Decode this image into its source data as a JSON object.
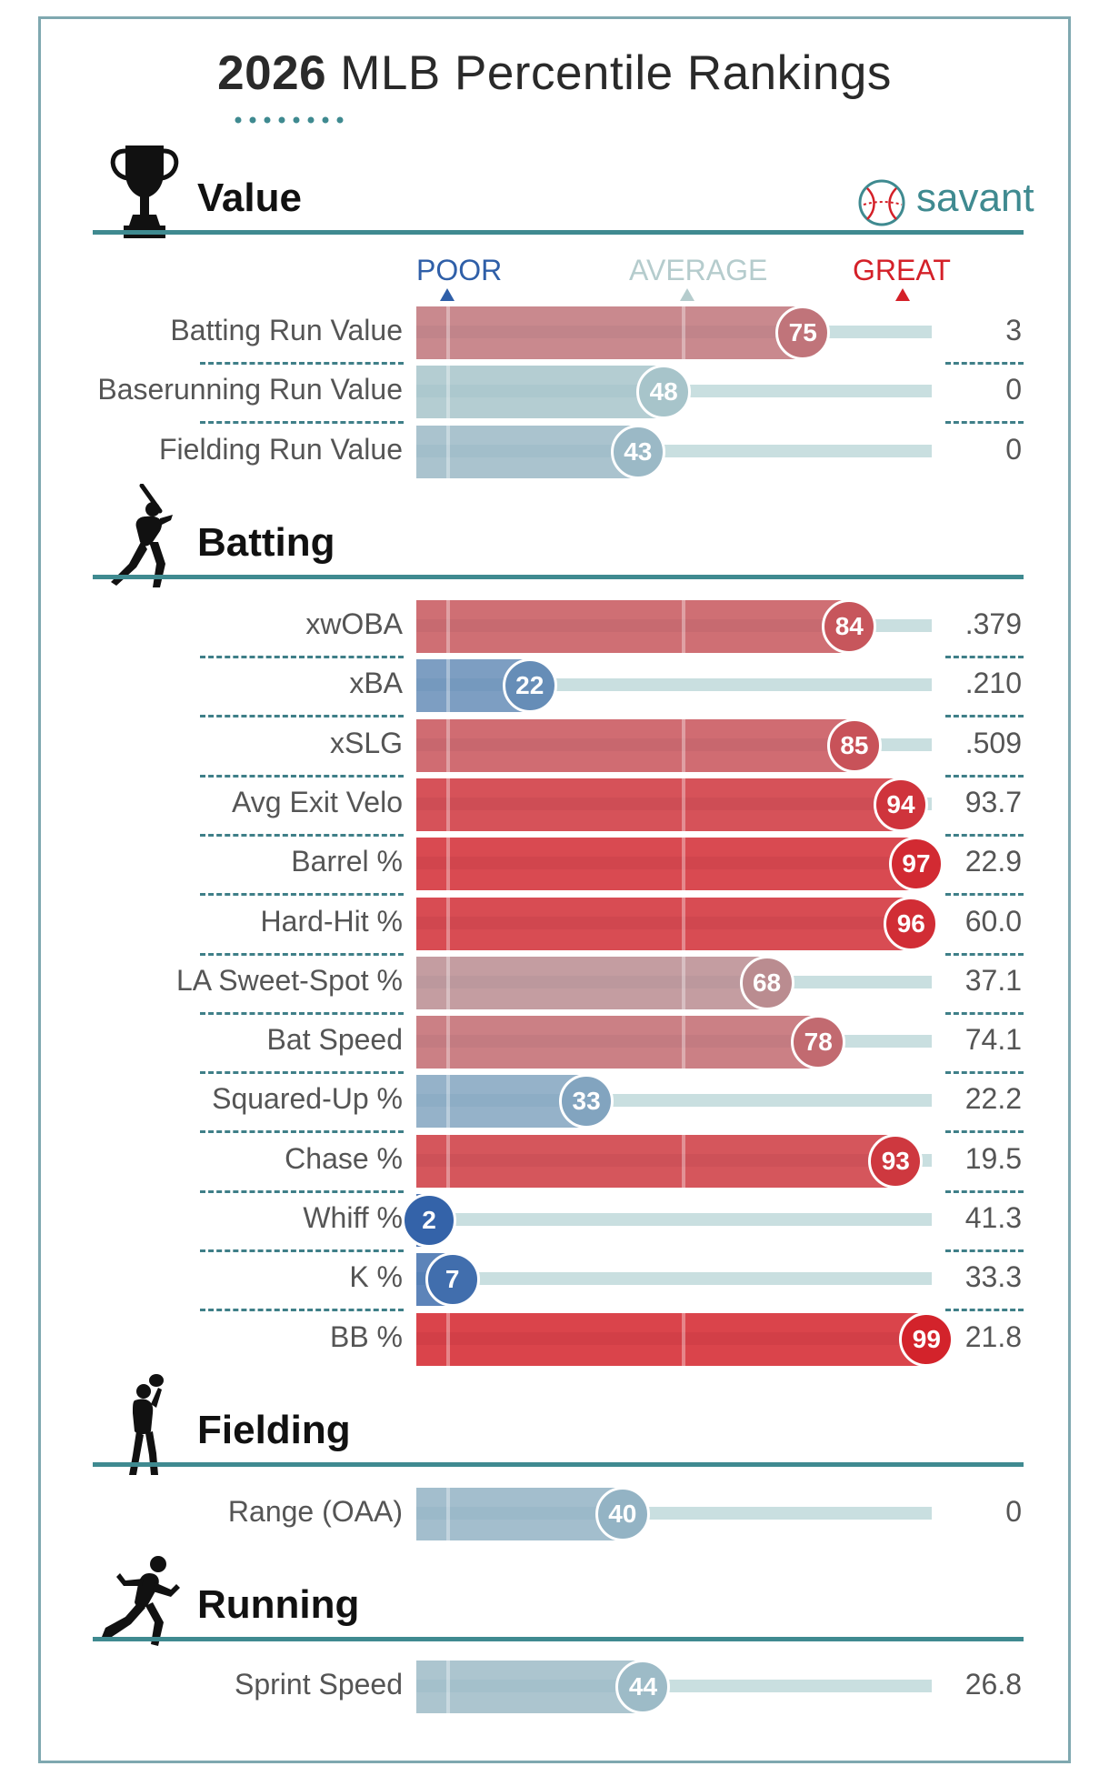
{
  "title": {
    "year": "2026",
    "rest": " MLB Percentile Rankings"
  },
  "brand": {
    "name": "savant"
  },
  "scale_labels": {
    "poor": "POOR",
    "average": "AVERAGE",
    "great": "GREAT"
  },
  "colors": {
    "accent": "#3f8a90",
    "poor": "#2f5fa8",
    "average": "#a9c4c6",
    "great": "#d42028"
  },
  "sections": [
    {
      "key": "value",
      "title": "Value",
      "icon": "trophy-icon"
    },
    {
      "key": "batting",
      "title": "Batting",
      "icon": "batter-icon"
    },
    {
      "key": "fielding",
      "title": "Fielding",
      "icon": "fielder-icon"
    },
    {
      "key": "running",
      "title": "Running",
      "icon": "runner-icon"
    }
  ],
  "chart_data": {
    "type": "bar",
    "title": "2026 MLB Percentile Rankings",
    "xlim": [
      0,
      100
    ],
    "groups": [
      {
        "section": "Value",
        "metrics": [
          {
            "label": "Batting Run Value",
            "percentile": 75,
            "value": "3"
          },
          {
            "label": "Baserunning Run Value",
            "percentile": 48,
            "value": "0"
          },
          {
            "label": "Fielding Run Value",
            "percentile": 43,
            "value": "0"
          }
        ]
      },
      {
        "section": "Batting",
        "metrics": [
          {
            "label": "xwOBA",
            "percentile": 84,
            "value": ".379"
          },
          {
            "label": "xBA",
            "percentile": 22,
            "value": ".210"
          },
          {
            "label": "xSLG",
            "percentile": 85,
            "value": ".509"
          },
          {
            "label": "Avg Exit Velo",
            "percentile": 94,
            "value": "93.7"
          },
          {
            "label": "Barrel %",
            "percentile": 97,
            "value": "22.9"
          },
          {
            "label": "Hard-Hit %",
            "percentile": 96,
            "value": "60.0"
          },
          {
            "label": "LA Sweet-Spot %",
            "percentile": 68,
            "value": "37.1"
          },
          {
            "label": "Bat Speed",
            "percentile": 78,
            "value": "74.1"
          },
          {
            "label": "Squared-Up %",
            "percentile": 33,
            "value": "22.2"
          },
          {
            "label": "Chase %",
            "percentile": 93,
            "value": "19.5"
          },
          {
            "label": "Whiff %",
            "percentile": 2,
            "value": "41.3"
          },
          {
            "label": "K %",
            "percentile": 7,
            "value": "33.3"
          },
          {
            "label": "BB %",
            "percentile": 99,
            "value": "21.8"
          }
        ]
      },
      {
        "section": "Fielding",
        "metrics": [
          {
            "label": "Range (OAA)",
            "percentile": 40,
            "value": "0"
          }
        ]
      },
      {
        "section": "Running",
        "metrics": [
          {
            "label": "Sprint Speed",
            "percentile": 44,
            "value": "26.8"
          }
        ]
      }
    ]
  }
}
